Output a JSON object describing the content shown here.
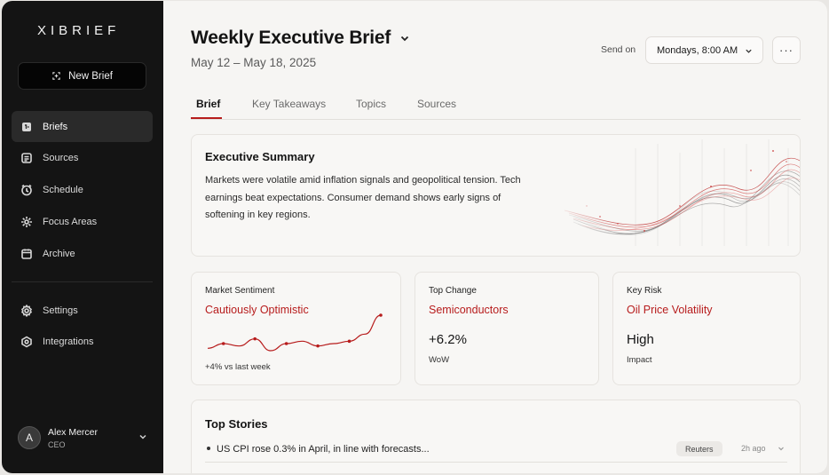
{
  "app": {
    "logo": "XIBRIEF"
  },
  "sidebar": {
    "new_brief": "New Brief",
    "items": [
      {
        "label": "Briefs",
        "icon": "briefs-icon",
        "active": true
      },
      {
        "label": "Sources",
        "icon": "sources-icon"
      },
      {
        "label": "Schedule",
        "icon": "schedule-icon"
      },
      {
        "label": "Focus Areas",
        "icon": "focus-icon"
      },
      {
        "label": "Archive",
        "icon": "archive-icon"
      }
    ],
    "secondary": [
      {
        "label": "Settings",
        "icon": "gear-icon"
      },
      {
        "label": "Integrations",
        "icon": "integrations-icon"
      }
    ],
    "user": {
      "initial": "A",
      "name": "Alex Mercer",
      "role": "CEO"
    }
  },
  "header": {
    "title": "Weekly Executive Brief",
    "date_range": "May 12 – May 18, 2025",
    "send_label": "Send on",
    "send_value": "Mondays, 8:00 AM",
    "more": "···"
  },
  "tabs": [
    "Brief",
    "Key Takeaways",
    "Topics",
    "Sources"
  ],
  "summary": {
    "title": "Executive Summary",
    "text": "Markets were volatile amid inflation signals and geopolitical tension. Tech earnings beat expectations. Consumer demand shows early signs of softening in key regions."
  },
  "metrics": {
    "sentiment": {
      "label": "Market Sentiment",
      "value": "Cautiously Optimistic",
      "sub": "+4% vs last week",
      "trend": [
        3,
        5,
        4,
        7,
        2,
        5,
        6,
        4,
        5,
        6,
        9,
        17
      ]
    },
    "change": {
      "label": "Top Change",
      "value": "Semiconductors",
      "big": "+6.2%",
      "sub": "WoW"
    },
    "risk": {
      "label": "Key Risk",
      "value": "Oil Price Volatility",
      "big": "High",
      "sub": "Impact"
    }
  },
  "stories": {
    "title": "Top Stories",
    "items": [
      {
        "text": "US CPI rose 0.3% in April, in line with forecasts...",
        "source": "Reuters",
        "time": "2h ago"
      }
    ]
  },
  "colors": {
    "accent": "#b71c1c",
    "sidebar": "#141414"
  }
}
